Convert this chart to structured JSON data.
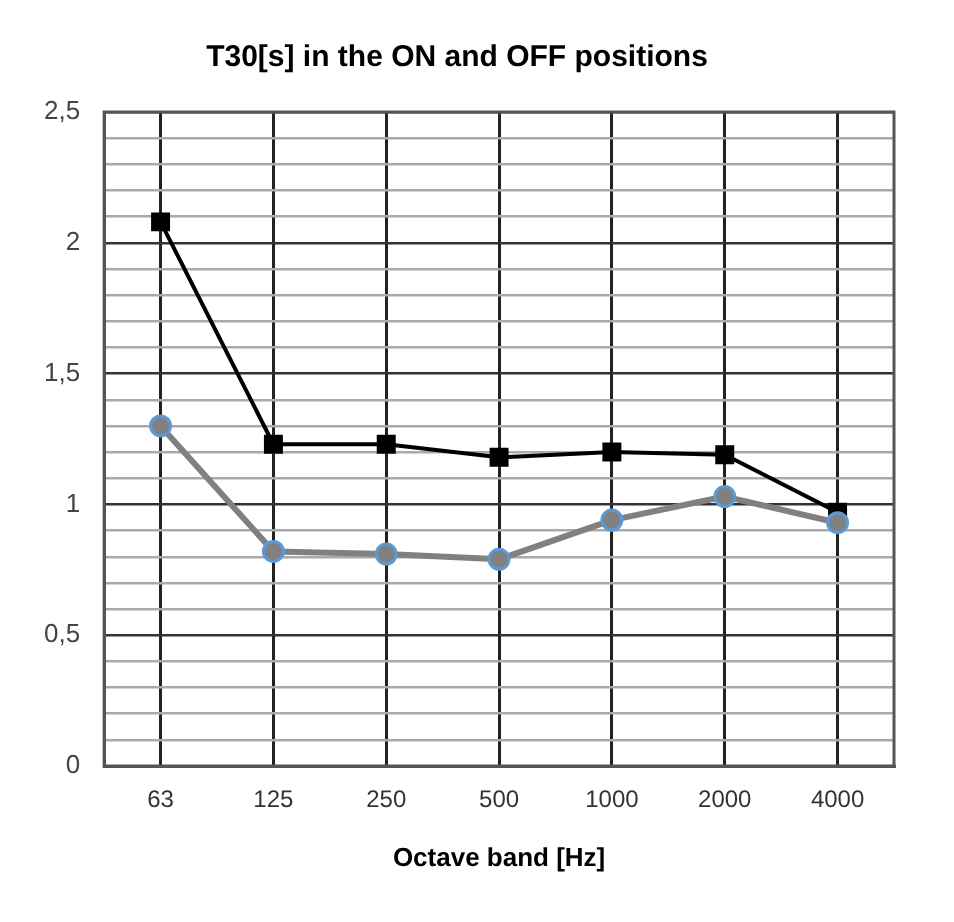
{
  "chart_data": {
    "type": "line",
    "title": "T30[s] in the ON and OFF positions",
    "xlabel": "Octave band [Hz]",
    "categories": [
      "63",
      "125",
      "250",
      "500",
      "1000",
      "2000",
      "4000"
    ],
    "series": [
      {
        "color": "#000000",
        "marker": "square",
        "values": [
          2.08,
          1.23,
          1.23,
          1.18,
          1.2,
          1.19,
          0.97
        ]
      },
      {
        "color": "#808080",
        "marker": "circle",
        "values": [
          1.3,
          0.82,
          0.81,
          0.79,
          0.94,
          1.03,
          0.93
        ]
      }
    ],
    "ylim": [
      0,
      2.5
    ],
    "yticks": [
      0,
      {
        "value": 0.1,
        "label": null
      },
      {
        "value": 0.2,
        "label": null
      },
      {
        "value": 0.3,
        "label": null
      },
      {
        "value": 0.4,
        "label": null
      },
      {
        "value": 0.5,
        "label": "0,5"
      },
      {
        "value": 0.6,
        "label": null
      },
      {
        "value": 0.7,
        "label": null
      },
      {
        "value": 0.8,
        "label": null
      },
      {
        "value": 0.9,
        "label": null
      },
      1,
      {
        "value": 1.1,
        "label": null
      },
      {
        "value": 1.2,
        "label": null
      },
      {
        "value": 1.3,
        "label": null
      },
      {
        "value": 1.4,
        "label": null
      },
      {
        "value": 1.5,
        "label": "1,5"
      },
      {
        "value": 1.6,
        "label": null
      },
      {
        "value": 1.7,
        "label": null
      },
      {
        "value": 1.8,
        "label": null
      },
      {
        "value": 1.9,
        "label": null
      },
      2,
      {
        "value": 2.1,
        "label": null
      },
      {
        "value": 2.2,
        "label": null
      },
      {
        "value": 2.3,
        "label": null
      },
      {
        "value": 2.4,
        "label": null
      },
      {
        "value": 2.5,
        "label": "2,5"
      }
    ],
    "grid": true,
    "legend": false,
    "line_style": "solid"
  }
}
